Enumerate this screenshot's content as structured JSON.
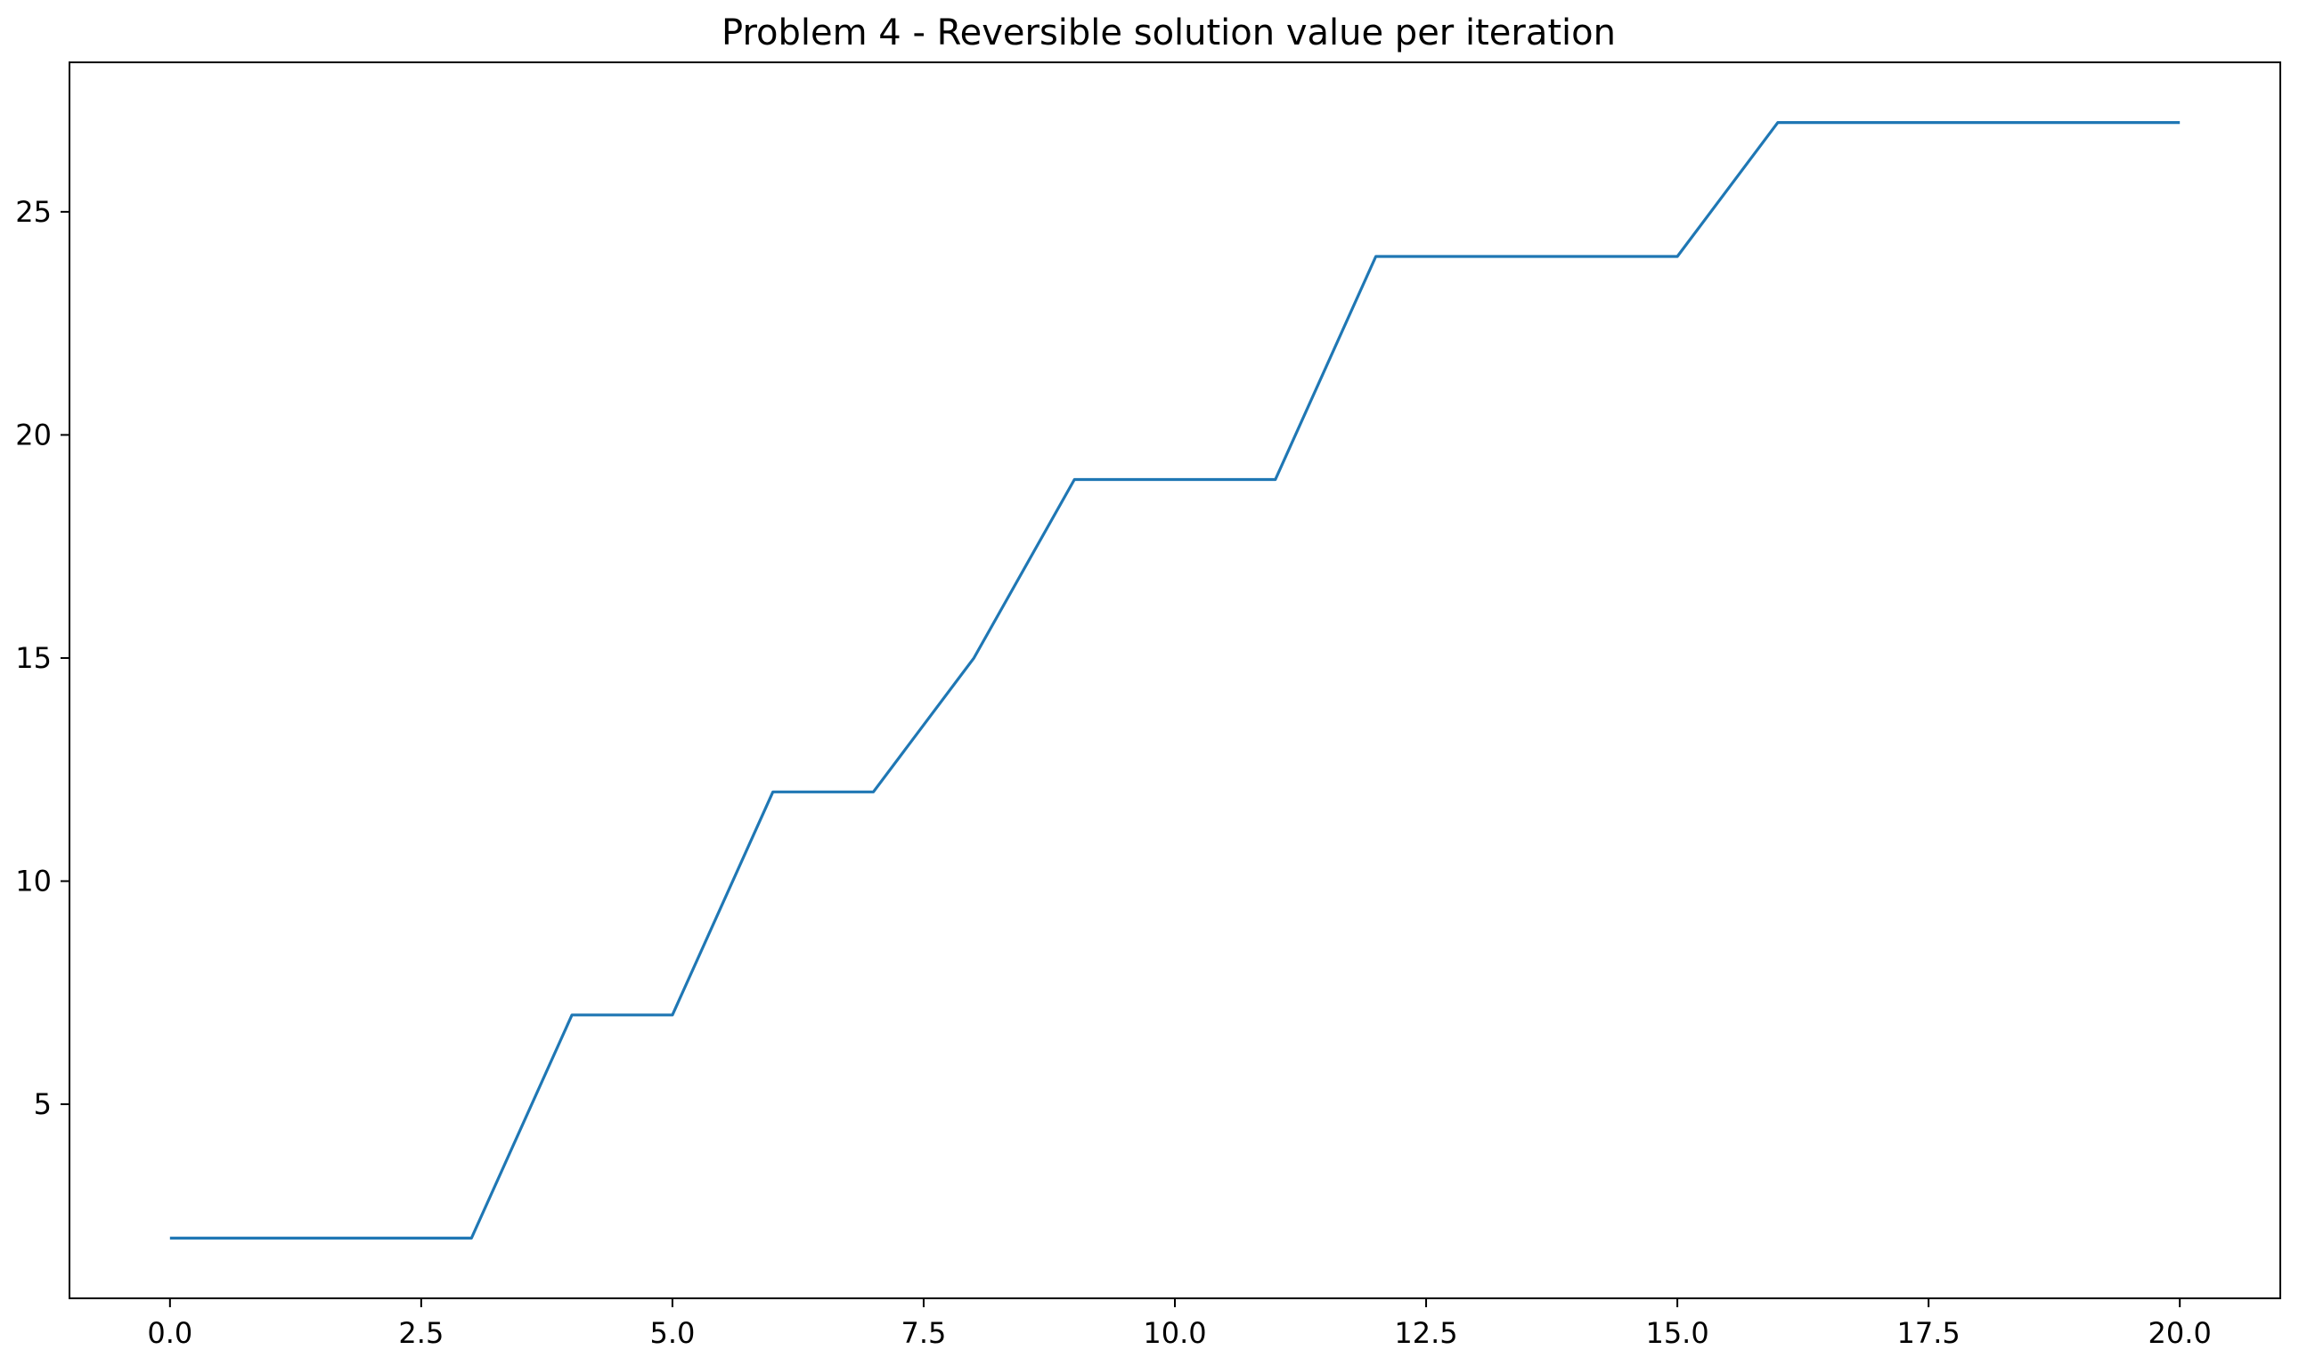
{
  "chart_data": {
    "type": "line",
    "title": "Problem 4 - Reversible solution value per iteration",
    "xlabel": "",
    "ylabel": "",
    "xlim": [
      -1.0,
      21.0
    ],
    "ylim": [
      0.65,
      28.35
    ],
    "x_ticks": [
      0.0,
      2.5,
      5.0,
      7.5,
      10.0,
      12.5,
      15.0,
      17.5,
      20.0
    ],
    "x_tick_labels": [
      "0.0",
      "2.5",
      "5.0",
      "7.5",
      "10.0",
      "12.5",
      "15.0",
      "17.5",
      "20.0"
    ],
    "y_ticks": [
      5,
      10,
      15,
      20,
      25
    ],
    "y_tick_labels": [
      "5",
      "10",
      "15",
      "20",
      "25"
    ],
    "grid": false,
    "series": [
      {
        "color": "#1f77b4",
        "x": [
          0,
          1,
          2,
          3,
          4,
          5,
          6,
          7,
          8,
          9,
          10,
          11,
          12,
          13,
          14,
          15,
          16,
          17,
          18,
          19,
          20
        ],
        "y": [
          2,
          2,
          2,
          2,
          7,
          7,
          12,
          12,
          15,
          19,
          19,
          19,
          24,
          24,
          24,
          24,
          27,
          27,
          27,
          27,
          27
        ]
      }
    ]
  }
}
